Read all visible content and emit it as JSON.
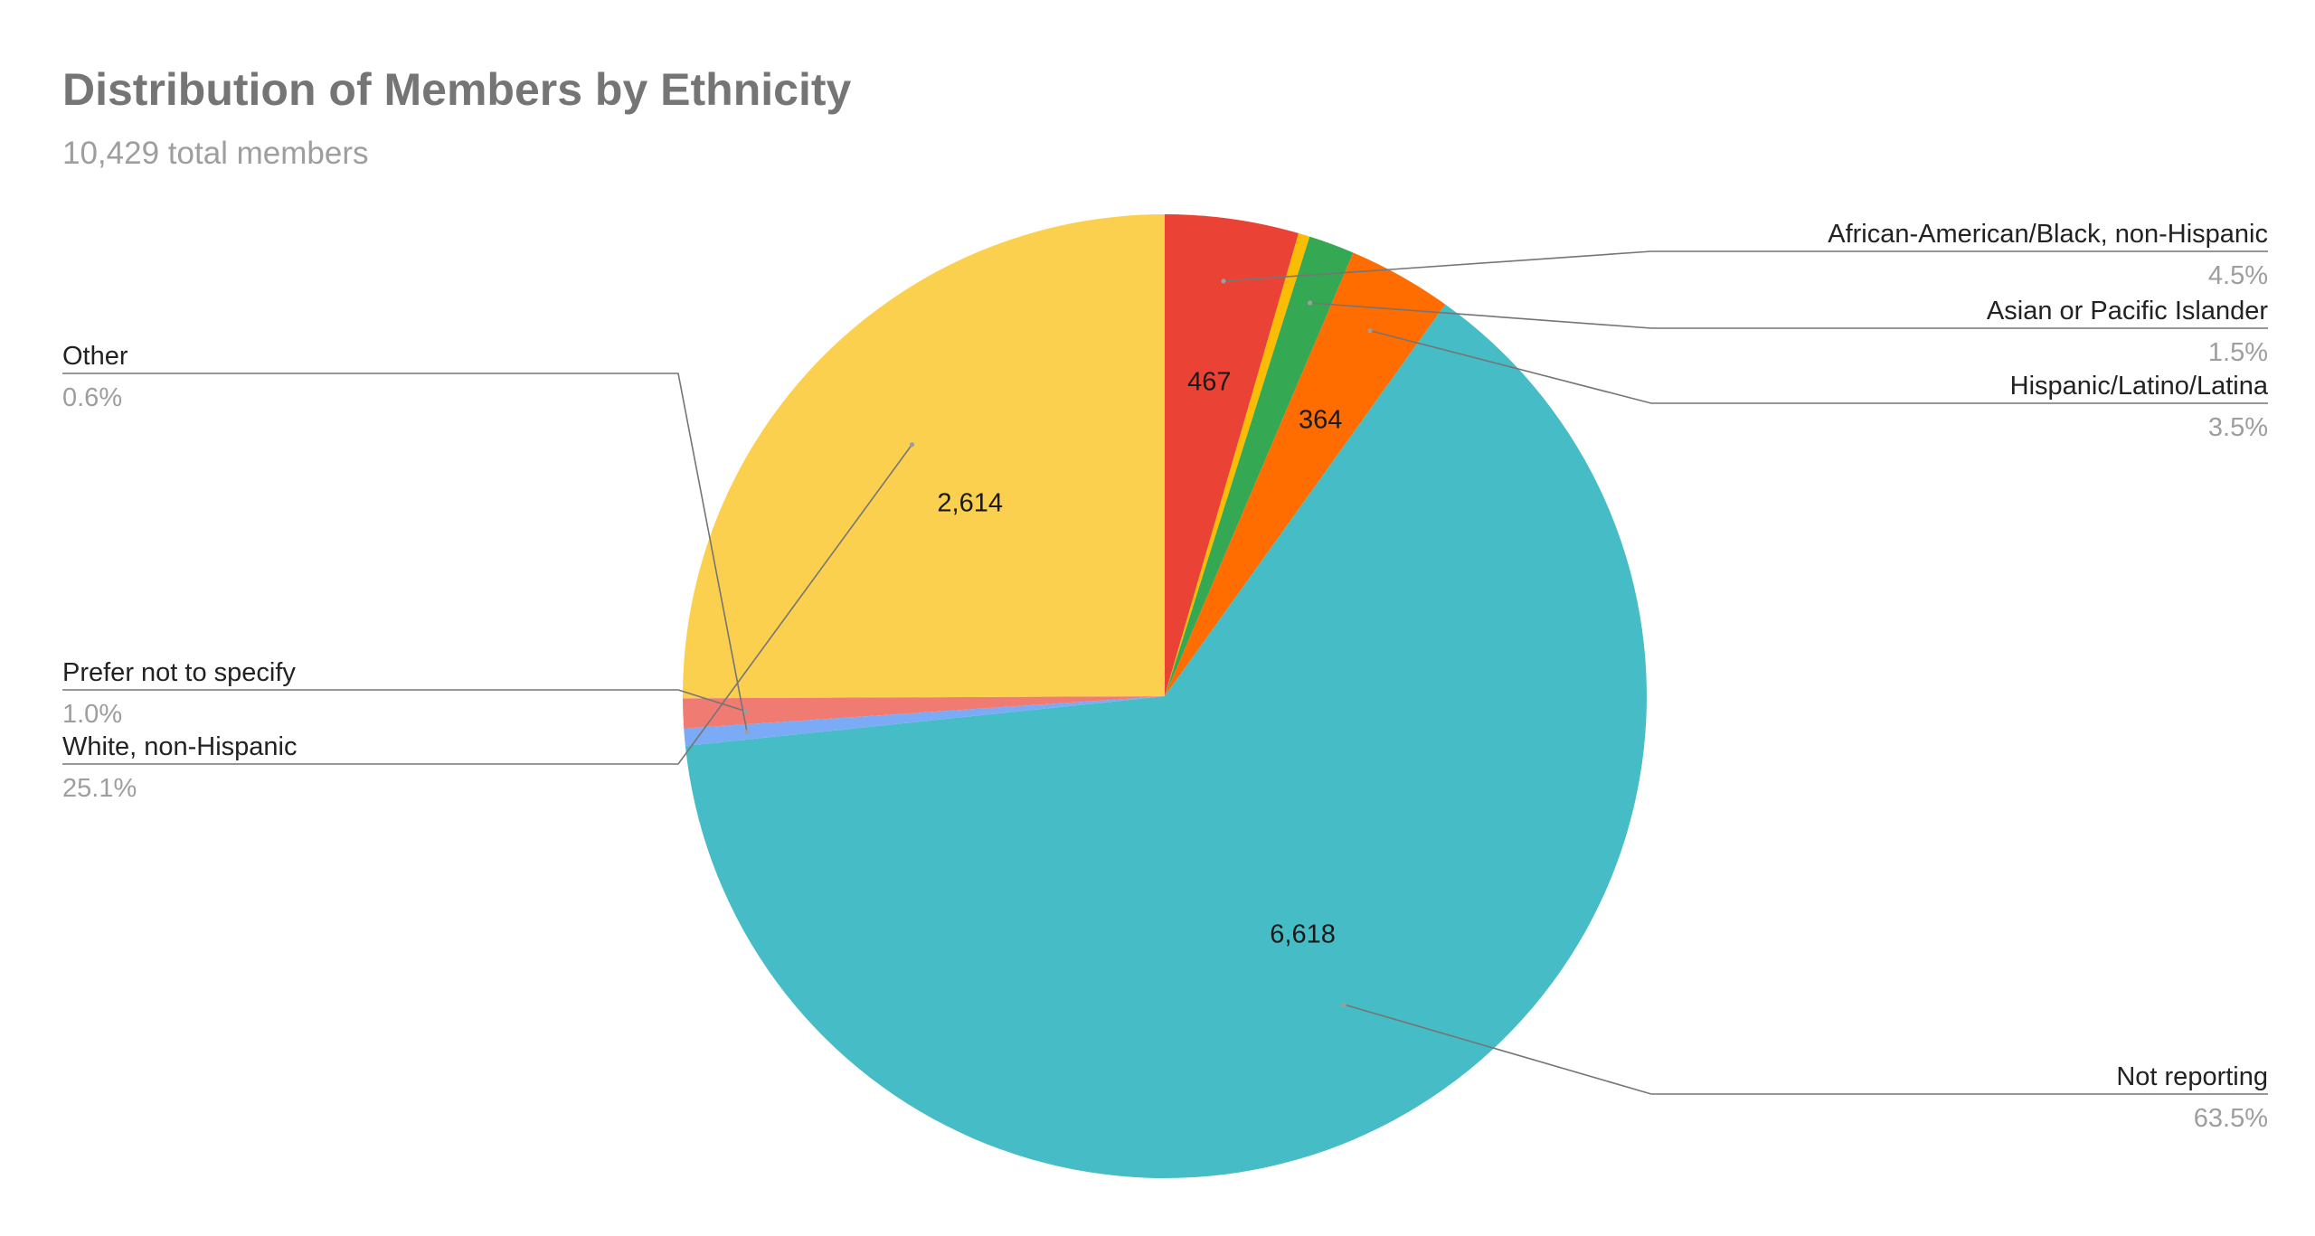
{
  "chart_data": {
    "type": "pie",
    "title": "Distribution of Members by Ethnicity",
    "subtitle": "10,429 total members",
    "start_angle_deg": 0,
    "direction": "clockwise",
    "slices": [
      {
        "name": "African-American/Black, non-Hispanic",
        "value": 467,
        "percent_label": "4.5%",
        "value_label": "467",
        "color": "#ea4335",
        "label_side": "right"
      },
      {
        "name": "",
        "value": 40,
        "percent_label": "",
        "value_label": "",
        "color": "#fbbc04",
        "label_side": "none"
      },
      {
        "name": "Asian or Pacific Islander",
        "value": 160,
        "percent_label": "1.5%",
        "value_label": "",
        "color": "#34a853",
        "label_side": "right"
      },
      {
        "name": "Hispanic/Latino/Latina",
        "value": 364,
        "percent_label": "3.5%",
        "value_label": "364",
        "color": "#ff6d01",
        "label_side": "right"
      },
      {
        "name": "Not reporting",
        "value": 6618,
        "percent_label": "63.5%",
        "value_label": "6,618",
        "color": "#46bdc6",
        "label_side": "right"
      },
      {
        "name": "Other",
        "value": 60,
        "percent_label": "0.6%",
        "value_label": "",
        "color": "#7baaf7",
        "label_side": "left"
      },
      {
        "name": "Prefer not to specify",
        "value": 104,
        "percent_label": "1.0%",
        "value_label": "",
        "color": "#f07b72",
        "label_side": "left"
      },
      {
        "name": "White, non-Hispanic",
        "value": 2614,
        "percent_label": "25.1%",
        "value_label": "2,614",
        "color": "#fcd04f",
        "label_side": "left"
      }
    ]
  }
}
